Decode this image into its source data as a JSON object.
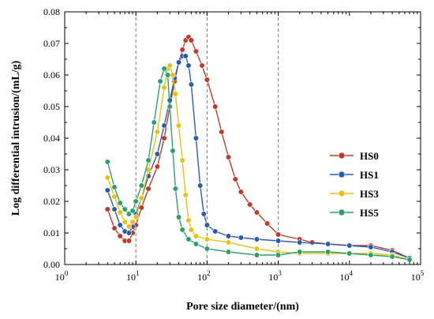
{
  "chart_data": {
    "type": "line",
    "xlabel": "Pore size diameter/(nm)",
    "ylabel": "Log differential intrusion/(mL/g)",
    "x_scale": "log",
    "xlim": [
      1,
      100000
    ],
    "ylim": [
      0,
      0.08
    ],
    "x_ticks": [
      {
        "value": 1,
        "base": "10",
        "exp": "0"
      },
      {
        "value": 10,
        "base": "10",
        "exp": "1"
      },
      {
        "value": 100,
        "base": "10",
        "exp": "2"
      },
      {
        "value": 1000,
        "base": "10",
        "exp": "3"
      },
      {
        "value": 10000,
        "base": "10",
        "exp": "4"
      },
      {
        "value": 100000,
        "base": "10",
        "exp": "5"
      }
    ],
    "y_ticks": [
      "0.00",
      "0.01",
      "0.02",
      "0.03",
      "0.04",
      "0.05",
      "0.06",
      "0.07",
      "0.08"
    ],
    "reference_lines_x": [
      10,
      100,
      1000
    ],
    "legend_position": "right",
    "series": [
      {
        "name": "HS0",
        "color": "#c0392b",
        "points": [
          [
            4,
            0.0175
          ],
          [
            5,
            0.0115
          ],
          [
            6,
            0.009
          ],
          [
            7,
            0.0075
          ],
          [
            8,
            0.0075
          ],
          [
            9,
            0.01
          ],
          [
            10,
            0.0125
          ],
          [
            12,
            0.018
          ],
          [
            15,
            0.024
          ],
          [
            20,
            0.031
          ],
          [
            25,
            0.04
          ],
          [
            30,
            0.05
          ],
          [
            35,
            0.058
          ],
          [
            40,
            0.064
          ],
          [
            45,
            0.068
          ],
          [
            50,
            0.071
          ],
          [
            55,
            0.072
          ],
          [
            60,
            0.071
          ],
          [
            70,
            0.0675
          ],
          [
            85,
            0.063
          ],
          [
            100,
            0.0585
          ],
          [
            130,
            0.05
          ],
          [
            160,
            0.042
          ],
          [
            200,
            0.034
          ],
          [
            250,
            0.027
          ],
          [
            300,
            0.023
          ],
          [
            400,
            0.019
          ],
          [
            500,
            0.0165
          ],
          [
            700,
            0.013
          ],
          [
            1000,
            0.0095
          ],
          [
            2000,
            0.008
          ],
          [
            3000,
            0.007
          ],
          [
            5000,
            0.0065
          ],
          [
            10000,
            0.006
          ],
          [
            20000,
            0.006
          ],
          [
            40000,
            0.0045
          ],
          [
            70000,
            0.002
          ]
        ]
      },
      {
        "name": "HS1",
        "color": "#2a5caa",
        "points": [
          [
            4,
            0.0235
          ],
          [
            5,
            0.0175
          ],
          [
            6,
            0.0125
          ],
          [
            7,
            0.0105
          ],
          [
            8,
            0.01
          ],
          [
            9,
            0.012
          ],
          [
            10,
            0.016
          ],
          [
            12,
            0.021
          ],
          [
            15,
            0.028
          ],
          [
            20,
            0.035
          ],
          [
            25,
            0.044
          ],
          [
            30,
            0.052
          ],
          [
            35,
            0.059
          ],
          [
            40,
            0.064
          ],
          [
            45,
            0.066
          ],
          [
            50,
            0.066
          ],
          [
            55,
            0.063
          ],
          [
            60,
            0.057
          ],
          [
            70,
            0.04
          ],
          [
            80,
            0.025
          ],
          [
            90,
            0.016
          ],
          [
            100,
            0.0125
          ],
          [
            130,
            0.0105
          ],
          [
            200,
            0.009
          ],
          [
            300,
            0.0085
          ],
          [
            500,
            0.008
          ],
          [
            1000,
            0.0075
          ],
          [
            2000,
            0.007
          ],
          [
            5000,
            0.0065
          ],
          [
            10000,
            0.006
          ],
          [
            20000,
            0.0055
          ],
          [
            40000,
            0.004
          ],
          [
            70000,
            0.002
          ]
        ]
      },
      {
        "name": "HS3",
        "color": "#e8c015",
        "points": [
          [
            4,
            0.0275
          ],
          [
            5,
            0.0215
          ],
          [
            6,
            0.0165
          ],
          [
            7,
            0.0135
          ],
          [
            8,
            0.012
          ],
          [
            9,
            0.0135
          ],
          [
            10,
            0.015
          ],
          [
            12,
            0.021
          ],
          [
            15,
            0.03
          ],
          [
            20,
            0.042
          ],
          [
            25,
            0.056
          ],
          [
            28,
            0.062
          ],
          [
            30,
            0.063
          ],
          [
            33,
            0.06
          ],
          [
            36,
            0.054
          ],
          [
            40,
            0.044
          ],
          [
            45,
            0.033
          ],
          [
            50,
            0.022
          ],
          [
            55,
            0.014
          ],
          [
            60,
            0.011
          ],
          [
            70,
            0.009
          ],
          [
            100,
            0.008
          ],
          [
            200,
            0.007
          ],
          [
            500,
            0.005
          ],
          [
            1000,
            0.004
          ],
          [
            2000,
            0.0035
          ],
          [
            5000,
            0.0035
          ],
          [
            10000,
            0.0035
          ],
          [
            20000,
            0.0035
          ],
          [
            40000,
            0.003
          ],
          [
            70000,
            0.0015
          ]
        ]
      },
      {
        "name": "HS5",
        "color": "#2e9e6b",
        "points": [
          [
            4,
            0.0325
          ],
          [
            5,
            0.0245
          ],
          [
            6,
            0.0195
          ],
          [
            7,
            0.0175
          ],
          [
            8,
            0.016
          ],
          [
            9,
            0.017
          ],
          [
            10,
            0.02
          ],
          [
            12,
            0.025
          ],
          [
            15,
            0.033
          ],
          [
            18,
            0.045
          ],
          [
            22,
            0.058
          ],
          [
            25,
            0.062
          ],
          [
            28,
            0.06
          ],
          [
            30,
            0.05
          ],
          [
            33,
            0.036
          ],
          [
            36,
            0.024
          ],
          [
            40,
            0.015
          ],
          [
            45,
            0.011
          ],
          [
            55,
            0.008
          ],
          [
            70,
            0.0065
          ],
          [
            100,
            0.005
          ],
          [
            200,
            0.004
          ],
          [
            500,
            0.003
          ],
          [
            1000,
            0.003
          ],
          [
            2000,
            0.004
          ],
          [
            5000,
            0.004
          ],
          [
            10000,
            0.0035
          ],
          [
            20000,
            0.003
          ],
          [
            40000,
            0.0025
          ],
          [
            70000,
            0.0015
          ]
        ]
      }
    ]
  }
}
